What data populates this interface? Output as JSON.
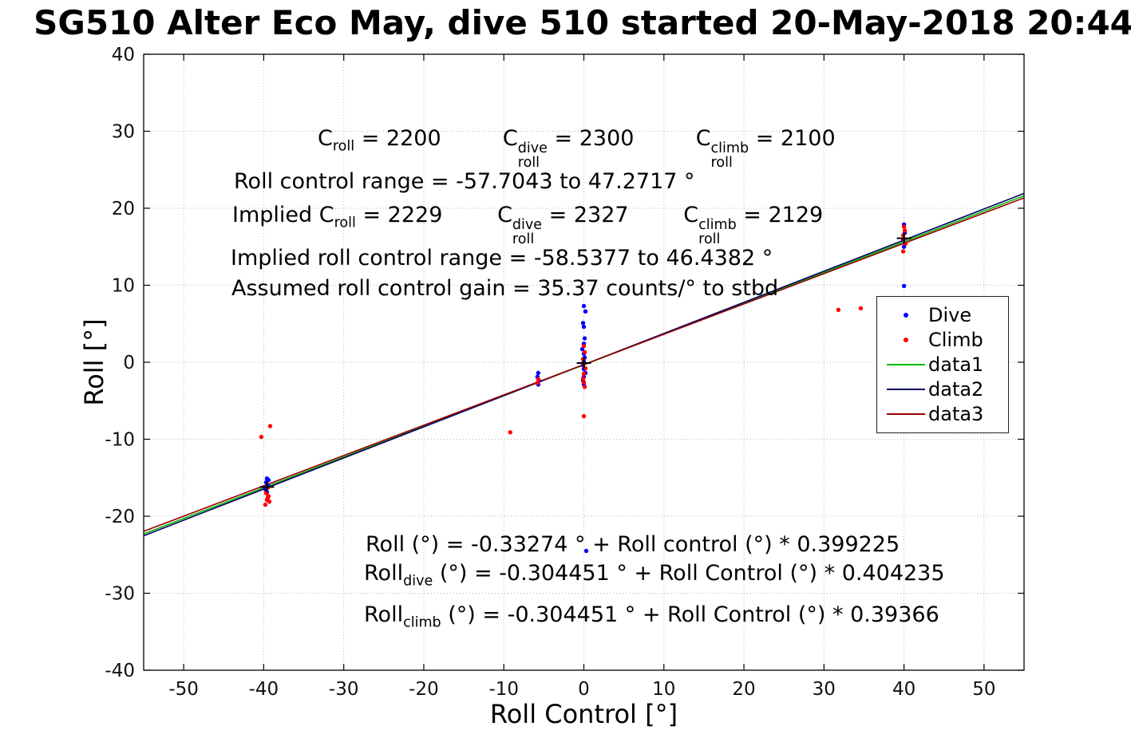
{
  "chart_data": {
    "type": "scatter",
    "title": "SG510 Alter Eco May, dive 510 started 20-May-2018 20:44",
    "xlabel": "Roll Control [°]",
    "ylabel": "Roll [°]",
    "xlim": [
      -55,
      55
    ],
    "ylim": [
      -40,
      40
    ],
    "xticks": [
      -50,
      -40,
      -30,
      -20,
      -10,
      0,
      10,
      20,
      30,
      40,
      50
    ],
    "yticks": [
      -40,
      -30,
      -20,
      -10,
      0,
      10,
      20,
      30,
      40
    ],
    "grid": true,
    "legend": {
      "position": "right-middle",
      "items": [
        {
          "label": "Dive",
          "marker": "dot",
          "color": "#0000ff"
        },
        {
          "label": "Climb",
          "marker": "dot",
          "color": "#ff0000"
        },
        {
          "label": "data1",
          "marker": "line",
          "color": "#00bb00"
        },
        {
          "label": "data2",
          "marker": "line",
          "color": "#000066"
        },
        {
          "label": "data3",
          "marker": "line",
          "color": "#990000"
        }
      ]
    },
    "series": [
      {
        "name": "Dive",
        "type": "scatter",
        "color": "#0000ff",
        "points": [
          [
            -39.6,
            -15.1
          ],
          [
            -39.7,
            -15.6
          ],
          [
            -39.5,
            -16.0
          ],
          [
            -39.8,
            -16.5
          ],
          [
            -39.6,
            -16.9
          ],
          [
            -39.4,
            -15.3
          ],
          [
            -5.7,
            -1.4
          ],
          [
            -5.8,
            -1.9
          ],
          [
            -5.6,
            -2.4
          ],
          [
            -5.7,
            -2.9
          ],
          [
            0.0,
            7.3
          ],
          [
            0.2,
            6.6
          ],
          [
            -0.1,
            5.1
          ],
          [
            0.0,
            4.6
          ],
          [
            0.1,
            3.1
          ],
          [
            0.0,
            2.4
          ],
          [
            -0.2,
            1.7
          ],
          [
            0.0,
            1.1
          ],
          [
            0.1,
            0.6
          ],
          [
            0.0,
            0.1
          ],
          [
            -0.1,
            -0.4
          ],
          [
            0.0,
            -0.9
          ],
          [
            0.2,
            -1.4
          ],
          [
            0.0,
            -1.9
          ],
          [
            -0.1,
            -2.4
          ],
          [
            0.0,
            -2.9
          ],
          [
            0.3,
            -24.5
          ],
          [
            40.0,
            9.9
          ],
          [
            40.0,
            17.9
          ],
          [
            40.1,
            16.8
          ],
          [
            39.9,
            15.9
          ],
          [
            40.0,
            15.0
          ]
        ]
      },
      {
        "name": "Climb",
        "type": "scatter",
        "color": "#ff0000",
        "points": [
          [
            -39.2,
            -8.3
          ],
          [
            -40.3,
            -9.7
          ],
          [
            -39.5,
            -16.3
          ],
          [
            -39.7,
            -17.0
          ],
          [
            -39.4,
            -17.4
          ],
          [
            -39.6,
            -17.9
          ],
          [
            -39.8,
            -18.5
          ],
          [
            -39.3,
            -18.1
          ],
          [
            -39.5,
            -17.6
          ],
          [
            -9.2,
            -9.1
          ],
          [
            -5.7,
            -2.2
          ],
          [
            -5.8,
            -2.7
          ],
          [
            0.0,
            2.1
          ],
          [
            0.1,
            1.3
          ],
          [
            -0.1,
            0.4
          ],
          [
            0.0,
            -0.2
          ],
          [
            0.2,
            -0.8
          ],
          [
            0.0,
            -1.5
          ],
          [
            -0.1,
            -2.1
          ],
          [
            0.0,
            -2.6
          ],
          [
            0.1,
            -3.2
          ],
          [
            0.0,
            -7.0
          ],
          [
            31.8,
            6.8
          ],
          [
            34.6,
            7.0
          ],
          [
            40.0,
            17.6
          ],
          [
            40.1,
            17.1
          ],
          [
            39.9,
            16.5
          ],
          [
            40.0,
            16.0
          ],
          [
            40.2,
            15.4
          ],
          [
            39.9,
            14.4
          ]
        ]
      },
      {
        "name": "data1",
        "type": "line",
        "color": "#00bb00",
        "x_range": [
          -55,
          55
        ],
        "fit": {
          "intercept": -0.33274,
          "slope": 0.399225
        }
      },
      {
        "name": "data2",
        "type": "line",
        "color": "#000066",
        "x_range": [
          -55,
          55
        ],
        "fit": {
          "intercept": -0.304451,
          "slope": 0.404235
        }
      },
      {
        "name": "data3",
        "type": "line",
        "color": "#990000",
        "x_range": [
          -55,
          55
        ],
        "fit": {
          "intercept": -0.304451,
          "slope": 0.39366
        }
      }
    ],
    "pivot_markers": [
      [
        -39.6,
        -16.2
      ],
      [
        0.0,
        -0.1
      ],
      [
        40.0,
        16.1
      ]
    ],
    "annotations": [
      {
        "id": "c_values",
        "tokens": [
          {
            "t": "C"
          },
          {
            "sub": "roll"
          },
          {
            "t": " = 2200         "
          },
          {
            "t": "C"
          },
          {
            "sup": "dive",
            "sub": "roll"
          },
          {
            "t": " = 2300         "
          },
          {
            "t": "C"
          },
          {
            "sup": "climb",
            "sub": "roll"
          },
          {
            "t": " = 2100"
          }
        ]
      },
      {
        "id": "roll_control_range",
        "tokens": [
          {
            "t": "Roll control range = -57.7043 to 47.2717 °"
          }
        ]
      },
      {
        "id": "implied_c_values",
        "tokens": [
          {
            "t": "Implied C"
          },
          {
            "sub": "roll"
          },
          {
            "t": " = 2229        "
          },
          {
            "t": "C"
          },
          {
            "sup": "dive",
            "sub": "roll"
          },
          {
            "t": " = 2327        "
          },
          {
            "t": "C"
          },
          {
            "sup": "climb",
            "sub": "roll"
          },
          {
            "t": " = 2129"
          }
        ]
      },
      {
        "id": "implied_roll_control_range",
        "tokens": [
          {
            "t": "Implied roll control range = -58.5377 to 46.4382 °"
          }
        ]
      },
      {
        "id": "assumed_gain",
        "tokens": [
          {
            "t": "Assumed roll control gain = 35.37 counts/° to stbd"
          }
        ]
      },
      {
        "id": "fit_combined",
        "tokens": [
          {
            "t": "Roll (°) = -0.33274 ° + Roll control (°) * 0.399225"
          }
        ]
      },
      {
        "id": "fit_dive",
        "tokens": [
          {
            "t": "Roll"
          },
          {
            "sub": "dive"
          },
          {
            "t": " (°) = -0.304451 ° + Roll Control (°) * 0.404235"
          }
        ]
      },
      {
        "id": "fit_climb",
        "tokens": [
          {
            "t": "Roll"
          },
          {
            "sub": "climb"
          },
          {
            "t": " (°) = -0.304451 ° + Roll Control (°) * 0.39366"
          }
        ]
      }
    ]
  }
}
